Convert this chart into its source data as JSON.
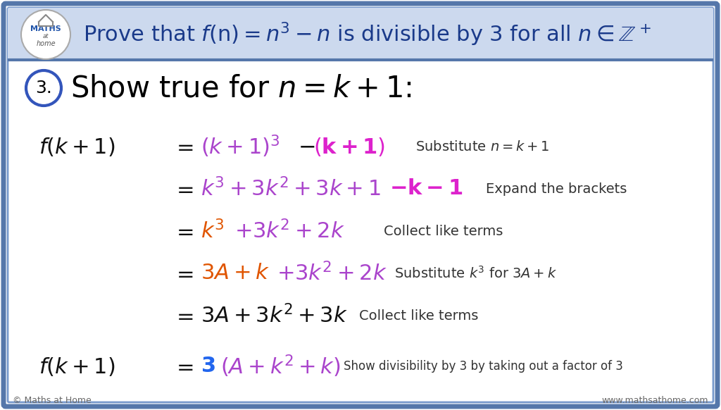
{
  "bg_color": "#ffffff",
  "outer_border_color": "#5577aa",
  "inner_border_color": "#7799cc",
  "header_bg": "#ccd9ee",
  "title_color": "#1a3a8a",
  "math_purple": "#aa44cc",
  "math_magenta": "#dd22cc",
  "math_orange": "#e05500",
  "math_blue": "#2266ee",
  "math_black": "#111111",
  "note_color": "#333333",
  "step_circle_color": "#3355bb",
  "footer_color": "#666666",
  "title_text": "Prove that $f(\\mathrm{n}) = n^3 - n$ is divisible by 3 for all $n \\in \\mathbb{Z}^+$",
  "step_label": "3.",
  "step_text": "Show true for $n = k + 1$:",
  "footer_left": "© Maths at Home",
  "footer_right": "www.mathsathome.com"
}
